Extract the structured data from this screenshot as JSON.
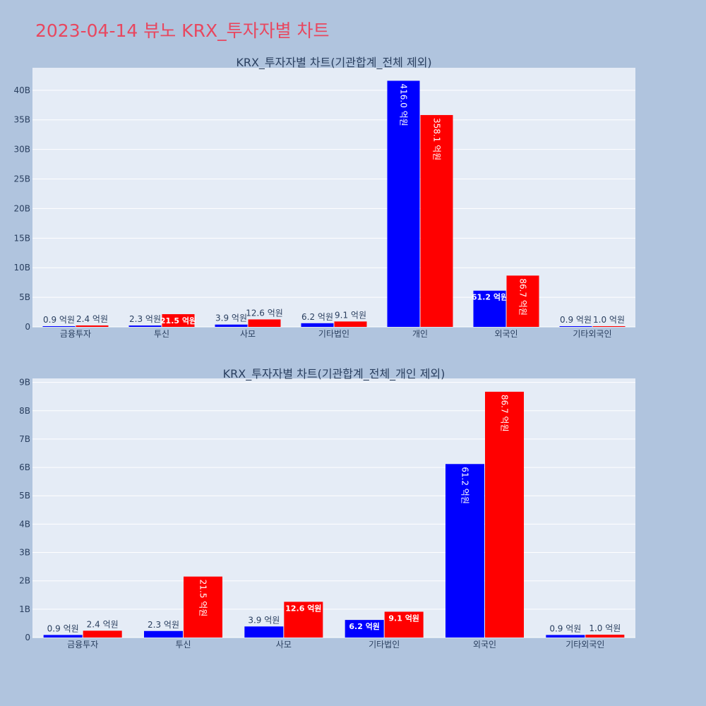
{
  "title": "2023-04-14 뷰노 KRX_투자자별 차트",
  "colors": {
    "series1": "#0000ff",
    "series2": "#ff0000",
    "plot_bg": "#e5ecf6",
    "page_bg": "#b0c4de",
    "title": "#e8475f"
  },
  "chart_data": [
    {
      "type": "bar",
      "title": "KRX_투자자별 차트(기관합계_전체 제외)",
      "categories": [
        "금융투자",
        "투신",
        "사모",
        "기타법인",
        "개인",
        "외국인",
        "기타외국인"
      ],
      "series": [
        {
          "values": [
            0.09,
            0.23,
            0.39,
            0.62,
            41.6,
            6.12,
            0.09
          ],
          "labels": [
            "0.9 억원",
            "2.3 억원",
            "3.9 억원",
            "6.2 억원",
            "416.0 억원",
            "61.2 억원",
            "0.9 억원"
          ]
        },
        {
          "values": [
            0.24,
            2.15,
            1.26,
            0.91,
            35.81,
            8.67,
            0.1
          ],
          "labels": [
            "2.4 억원",
            "21.5 억원",
            "12.6 억원",
            "9.1 억원",
            "358.1 억원",
            "86.7 억원",
            "1.0 억원"
          ]
        }
      ],
      "y_unit": "B",
      "y_ticks": [
        "0",
        "5B",
        "10B",
        "15B",
        "20B",
        "25B",
        "30B",
        "35B",
        "40B"
      ],
      "y_tick_values": [
        0,
        5,
        10,
        15,
        20,
        25,
        30,
        35,
        40
      ],
      "ylim": [
        0,
        43.8
      ],
      "xlabel": "",
      "ylabel": "",
      "grid": true,
      "legend": "none"
    },
    {
      "type": "bar",
      "title": "KRX_투자자별 차트(기관합계_전체_개인 제외)",
      "categories": [
        "금융투자",
        "투신",
        "사모",
        "기타법인",
        "외국인",
        "기타외국인"
      ],
      "series": [
        {
          "values": [
            0.09,
            0.23,
            0.39,
            0.62,
            6.12,
            0.09
          ],
          "labels": [
            "0.9 억원",
            "2.3 억원",
            "3.9 억원",
            "6.2 억원",
            "61.2 억원",
            "0.9 억원"
          ]
        },
        {
          "values": [
            0.24,
            2.15,
            1.26,
            0.91,
            8.67,
            0.1
          ],
          "labels": [
            "2.4 억원",
            "21.5 억원",
            "12.6 억원",
            "9.1 억원",
            "86.7 억원",
            "1.0 억원"
          ]
        }
      ],
      "y_unit": "B",
      "y_ticks": [
        "0",
        "1B",
        "2B",
        "3B",
        "4B",
        "5B",
        "6B",
        "7B",
        "8B",
        "9B"
      ],
      "y_tick_values": [
        0,
        1,
        2,
        3,
        4,
        5,
        6,
        7,
        8,
        9
      ],
      "ylim": [
        0,
        9.14
      ],
      "xlabel": "",
      "ylabel": "",
      "grid": true,
      "legend": "none"
    }
  ]
}
